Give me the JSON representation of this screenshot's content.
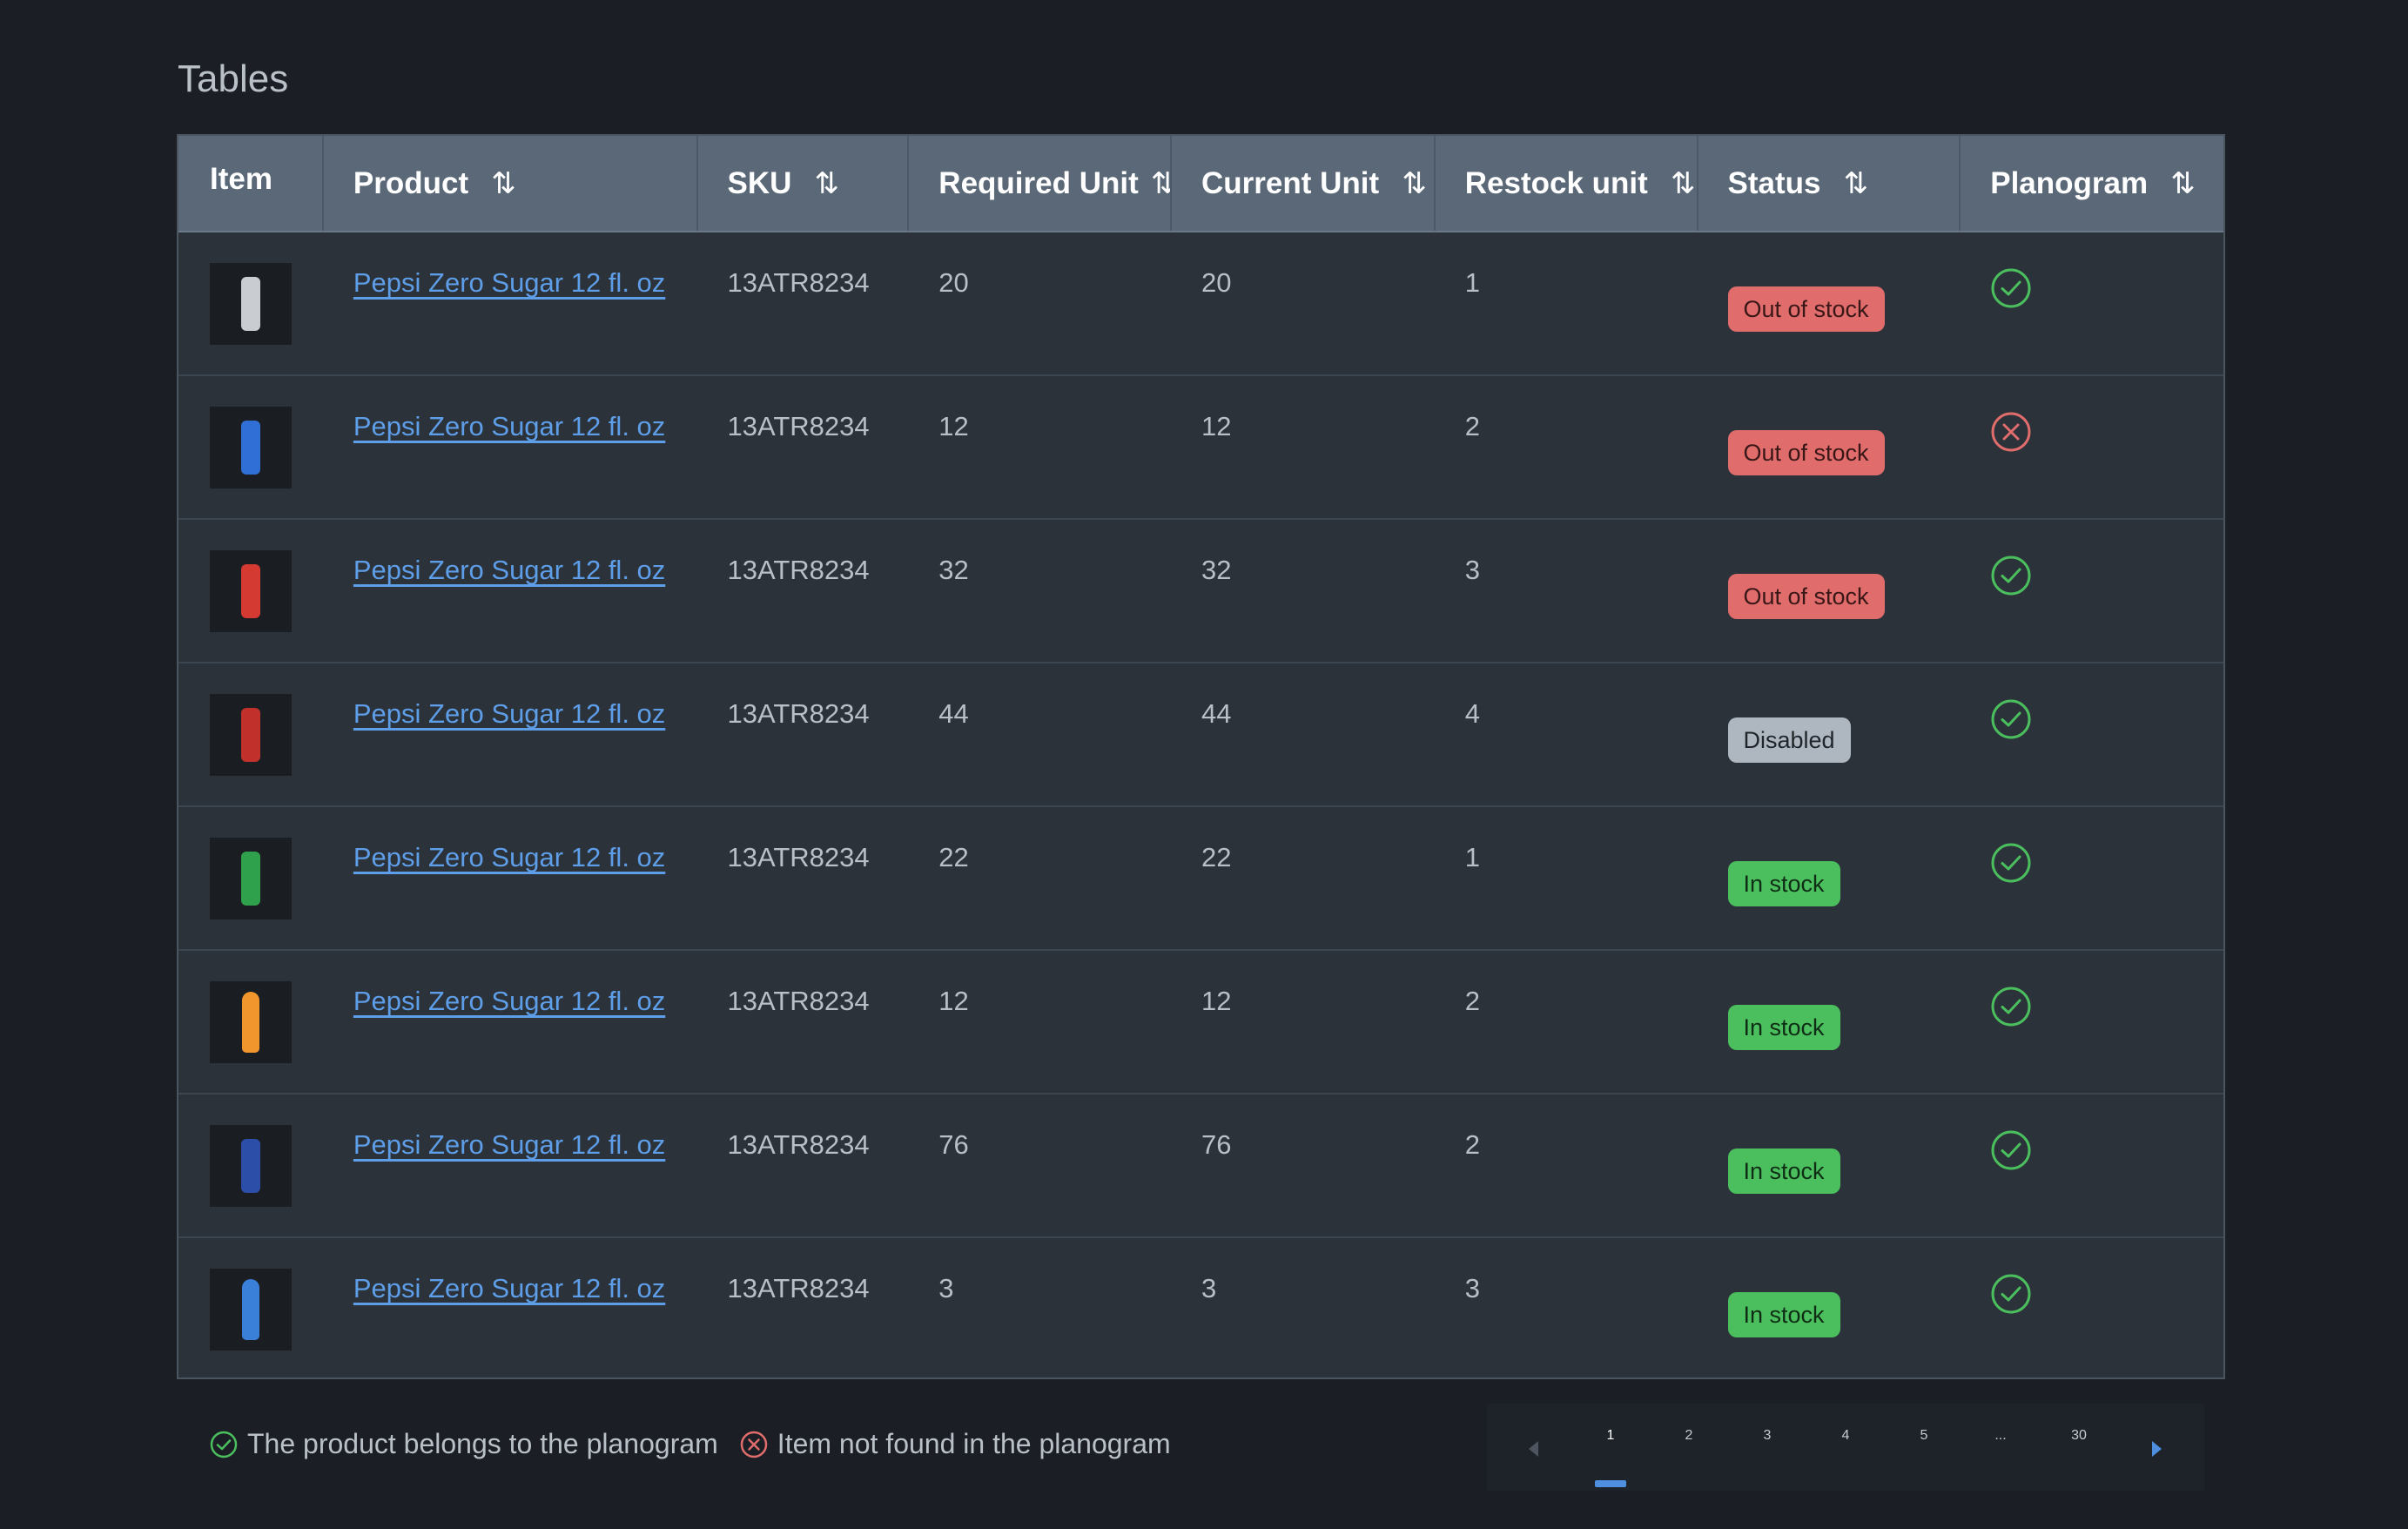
{
  "page": {
    "title": "Tables"
  },
  "table": {
    "headers": {
      "item": "Item",
      "product": "Product",
      "sku": "SKU",
      "required": "Required Unit",
      "current": "Current Unit",
      "restock": "Restock unit",
      "status": "Status",
      "planogram": "Planogram"
    },
    "sort_icon": "⇅",
    "rows": [
      {
        "thumb_color": "#c9cdd2",
        "thumb_kind": "can",
        "product": "Pepsi Zero Sugar 12 fl. oz",
        "sku": "13ATR8234",
        "required": "20",
        "current": "20",
        "restock": "1",
        "status": "Out of stock",
        "status_kind": "out",
        "planogram": "in"
      },
      {
        "thumb_color": "#2f6fd6",
        "thumb_kind": "can",
        "product": "Pepsi Zero Sugar 12 fl. oz",
        "sku": "13ATR8234",
        "required": "12",
        "current": "12",
        "restock": "2",
        "status": "Out of stock",
        "status_kind": "out",
        "planogram": "out"
      },
      {
        "thumb_color": "#d43a32",
        "thumb_kind": "can",
        "product": "Pepsi Zero Sugar 12 fl. oz",
        "sku": "13ATR8234",
        "required": "32",
        "current": "32",
        "restock": "3",
        "status": "Out of stock",
        "status_kind": "out",
        "planogram": "in"
      },
      {
        "thumb_color": "#c2302c",
        "thumb_kind": "can",
        "product": "Pepsi Zero Sugar 12 fl. oz",
        "sku": "13ATR8234",
        "required": "44",
        "current": "44",
        "restock": "4",
        "status": "Disabled",
        "status_kind": "disabled",
        "planogram": "in"
      },
      {
        "thumb_color": "#2fa14c",
        "thumb_kind": "can",
        "product": "Pepsi Zero Sugar 12 fl. oz",
        "sku": "13ATR8234",
        "required": "22",
        "current": "22",
        "restock": "1",
        "status": "In stock",
        "status_kind": "in",
        "planogram": "in"
      },
      {
        "thumb_color": "#f0962c",
        "thumb_kind": "bottle",
        "product": "Pepsi Zero Sugar 12 fl. oz",
        "sku": "13ATR8234",
        "required": "12",
        "current": "12",
        "restock": "2",
        "status": "In stock",
        "status_kind": "in",
        "planogram": "in"
      },
      {
        "thumb_color": "#2d4ea8",
        "thumb_kind": "can",
        "product": "Pepsi Zero Sugar 12 fl. oz",
        "sku": "13ATR8234",
        "required": "76",
        "current": "76",
        "restock": "2",
        "status": "In stock",
        "status_kind": "in",
        "planogram": "in"
      },
      {
        "thumb_color": "#3a7fd8",
        "thumb_kind": "bottle",
        "product": "Pepsi Zero Sugar 12 fl. oz",
        "sku": "13ATR8234",
        "required": "3",
        "current": "3",
        "restock": "3",
        "status": "In stock",
        "status_kind": "in",
        "planogram": "in"
      }
    ]
  },
  "legend": {
    "in_text": "The product belongs to the planogram",
    "out_text": "Item not found in the planogram"
  },
  "pagination": {
    "pages": [
      "1",
      "2",
      "3",
      "4",
      "5",
      "...",
      "30"
    ],
    "current": "1"
  },
  "colors": {
    "link": "#5e9ee8",
    "success": "#4bbf5d",
    "danger": "#e06c6c",
    "header_bg": "#5a6877"
  },
  "icons": {
    "planogram_in": "check-circle-icon",
    "planogram_out": "x-circle-icon",
    "prev": "caret-left-icon",
    "next": "caret-right-icon"
  }
}
